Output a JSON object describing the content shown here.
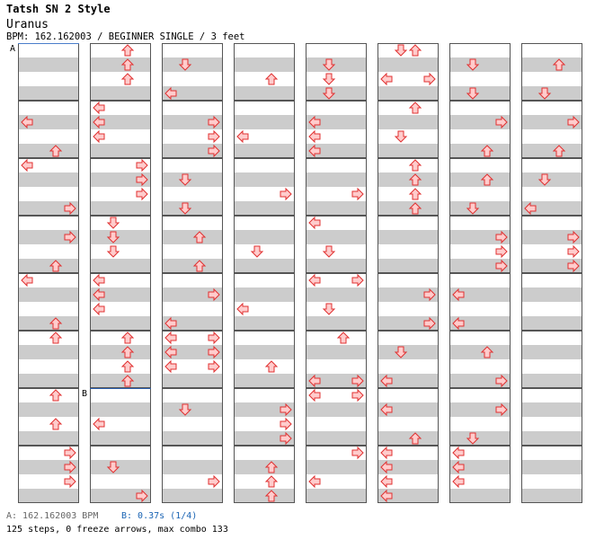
{
  "header": {
    "title": "Tatsh SN 2 Style",
    "song": "Uranus",
    "info": "BPM: 162.162003 / BEGINNER SINGLE / 3 feet"
  },
  "markers": {
    "a": "A",
    "b": "B"
  },
  "footer": {
    "bpm_a": "A: 162.162003 BPM",
    "bpm_b": "B: 0.37s (1/4)",
    "stats": "125 steps, 0 freeze arrows, max combo 133"
  },
  "colors": {
    "stripe": "#cccccc",
    "border": "#555555",
    "arrow_fill": "#ffcccc",
    "arrow_stroke": "#e03030",
    "marker_a_line": "#4a7ecb",
    "marker_b_line": "#2b5fb0"
  },
  "chart_data": {
    "type": "step-chart",
    "columns": 8,
    "measures_per_column": 8,
    "rows_per_measure": 4,
    "lanes": [
      "left",
      "down",
      "up",
      "right"
    ],
    "notes": [
      [
        [
          0,
          0,
          []
        ],
        [
          0,
          1,
          []
        ],
        [
          0,
          2,
          []
        ],
        [
          0,
          3,
          []
        ],
        [
          1,
          0,
          []
        ],
        [
          1,
          1,
          [
            0
          ]
        ],
        [
          1,
          2,
          []
        ],
        [
          1,
          3,
          [
            2
          ]
        ],
        [
          2,
          0,
          [
            0
          ]
        ],
        [
          2,
          1,
          []
        ],
        [
          2,
          2,
          []
        ],
        [
          2,
          3,
          [
            3
          ]
        ],
        [
          3,
          0,
          []
        ],
        [
          3,
          1,
          [
            3
          ]
        ],
        [
          3,
          2,
          []
        ],
        [
          3,
          3,
          [
            2
          ]
        ],
        [
          4,
          0,
          [
            0
          ]
        ],
        [
          4,
          1,
          []
        ],
        [
          4,
          2,
          []
        ],
        [
          4,
          3,
          [
            2
          ]
        ],
        [
          5,
          0,
          [
            2
          ]
        ],
        [
          5,
          1,
          []
        ],
        [
          5,
          2,
          []
        ],
        [
          5,
          3,
          []
        ],
        [
          6,
          0,
          [
            2
          ]
        ],
        [
          6,
          1,
          []
        ],
        [
          6,
          2,
          [
            2
          ]
        ],
        [
          6,
          3,
          []
        ],
        [
          7,
          0,
          [
            3
          ]
        ],
        [
          7,
          1,
          [
            3
          ]
        ],
        [
          7,
          2,
          [
            3
          ]
        ],
        [
          7,
          3,
          []
        ]
      ],
      [
        [
          0,
          0,
          [
            2
          ]
        ],
        [
          0,
          1,
          [
            2
          ]
        ],
        [
          0,
          2,
          [
            2
          ]
        ],
        [
          0,
          3,
          []
        ],
        [
          1,
          0,
          [
            0
          ]
        ],
        [
          1,
          1,
          [
            0
          ]
        ],
        [
          1,
          2,
          [
            0
          ]
        ],
        [
          1,
          3,
          []
        ],
        [
          2,
          0,
          [
            3
          ]
        ],
        [
          2,
          1,
          [
            3
          ]
        ],
        [
          2,
          2,
          [
            3
          ]
        ],
        [
          2,
          3,
          []
        ],
        [
          3,
          0,
          [
            1
          ]
        ],
        [
          3,
          1,
          [
            1
          ]
        ],
        [
          3,
          2,
          [
            1
          ]
        ],
        [
          3,
          3,
          []
        ],
        [
          4,
          0,
          [
            0
          ]
        ],
        [
          4,
          1,
          [
            0
          ]
        ],
        [
          4,
          2,
          [
            0
          ]
        ],
        [
          4,
          3,
          []
        ],
        [
          5,
          0,
          [
            2
          ]
        ],
        [
          5,
          1,
          [
            2
          ]
        ],
        [
          5,
          2,
          [
            2
          ]
        ],
        [
          5,
          3,
          [
            2
          ]
        ],
        [
          6,
          0,
          []
        ],
        [
          6,
          1,
          []
        ],
        [
          6,
          2,
          [
            0
          ]
        ],
        [
          6,
          3,
          []
        ],
        [
          7,
          0,
          []
        ],
        [
          7,
          1,
          [
            1
          ]
        ],
        [
          7,
          2,
          []
        ],
        [
          7,
          3,
          [
            3
          ]
        ]
      ],
      [
        [
          0,
          0,
          []
        ],
        [
          0,
          1,
          [
            1
          ]
        ],
        [
          0,
          2,
          []
        ],
        [
          0,
          3,
          [
            0
          ]
        ],
        [
          1,
          0,
          []
        ],
        [
          1,
          1,
          [
            3
          ]
        ],
        [
          1,
          2,
          [
            3
          ]
        ],
        [
          1,
          3,
          [
            3
          ]
        ],
        [
          2,
          0,
          []
        ],
        [
          2,
          1,
          [
            1
          ]
        ],
        [
          2,
          2,
          []
        ],
        [
          2,
          3,
          [
            1
          ]
        ],
        [
          3,
          0,
          []
        ],
        [
          3,
          1,
          [
            2
          ]
        ],
        [
          3,
          2,
          []
        ],
        [
          3,
          3,
          [
            2
          ]
        ],
        [
          4,
          0,
          []
        ],
        [
          4,
          1,
          [
            3
          ]
        ],
        [
          4,
          2,
          []
        ],
        [
          4,
          3,
          [
            0
          ]
        ],
        [
          5,
          0,
          [
            0,
            3
          ]
        ],
        [
          5,
          1,
          [
            0,
            3
          ]
        ],
        [
          5,
          2,
          [
            0,
            3
          ]
        ],
        [
          5,
          3,
          []
        ],
        [
          6,
          0,
          []
        ],
        [
          6,
          1,
          [
            1
          ]
        ],
        [
          6,
          2,
          []
        ],
        [
          6,
          3,
          []
        ],
        [
          7,
          0,
          []
        ],
        [
          7,
          1,
          []
        ],
        [
          7,
          2,
          [
            3
          ]
        ],
        [
          7,
          3,
          []
        ]
      ],
      [
        [
          0,
          0,
          []
        ],
        [
          0,
          1,
          []
        ],
        [
          0,
          2,
          [
            2
          ]
        ],
        [
          0,
          3,
          []
        ],
        [
          1,
          0,
          []
        ],
        [
          1,
          1,
          []
        ],
        [
          1,
          2,
          [
            0
          ]
        ],
        [
          1,
          3,
          []
        ],
        [
          2,
          0,
          []
        ],
        [
          2,
          1,
          []
        ],
        [
          2,
          2,
          [
            3
          ]
        ],
        [
          2,
          3,
          []
        ],
        [
          3,
          0,
          []
        ],
        [
          3,
          1,
          []
        ],
        [
          3,
          2,
          [
            1
          ]
        ],
        [
          3,
          3,
          []
        ],
        [
          4,
          0,
          []
        ],
        [
          4,
          1,
          []
        ],
        [
          4,
          2,
          [
            0
          ]
        ],
        [
          4,
          3,
          []
        ],
        [
          5,
          0,
          []
        ],
        [
          5,
          1,
          []
        ],
        [
          5,
          2,
          [
            2
          ]
        ],
        [
          5,
          3,
          []
        ],
        [
          6,
          0,
          []
        ],
        [
          6,
          1,
          [
            3
          ]
        ],
        [
          6,
          2,
          [
            3
          ]
        ],
        [
          6,
          3,
          [
            3
          ]
        ],
        [
          7,
          0,
          []
        ],
        [
          7,
          1,
          [
            2
          ]
        ],
        [
          7,
          2,
          [
            2
          ]
        ],
        [
          7,
          3,
          [
            2
          ]
        ]
      ],
      [
        [
          0,
          0,
          []
        ],
        [
          0,
          1,
          [
            1
          ]
        ],
        [
          0,
          2,
          [
            1
          ]
        ],
        [
          0,
          3,
          [
            1
          ]
        ],
        [
          1,
          0,
          []
        ],
        [
          1,
          1,
          [
            0
          ]
        ],
        [
          1,
          2,
          [
            0
          ]
        ],
        [
          1,
          3,
          [
            0
          ]
        ],
        [
          2,
          0,
          []
        ],
        [
          2,
          1,
          []
        ],
        [
          2,
          2,
          [
            3
          ]
        ],
        [
          2,
          3,
          []
        ],
        [
          3,
          0,
          [
            0
          ]
        ],
        [
          3,
          1,
          []
        ],
        [
          3,
          2,
          [
            1
          ]
        ],
        [
          3,
          3,
          []
        ],
        [
          4,
          0,
          [
            0,
            3
          ]
        ],
        [
          4,
          1,
          []
        ],
        [
          4,
          2,
          [
            1
          ]
        ],
        [
          4,
          3,
          []
        ],
        [
          5,
          0,
          [
            2
          ]
        ],
        [
          5,
          1,
          []
        ],
        [
          5,
          2,
          []
        ],
        [
          5,
          3,
          [
            0,
            3
          ]
        ],
        [
          6,
          0,
          [
            0,
            3
          ]
        ],
        [
          6,
          1,
          []
        ],
        [
          6,
          2,
          []
        ],
        [
          6,
          3,
          []
        ],
        [
          7,
          0,
          [
            3
          ]
        ],
        [
          7,
          1,
          []
        ],
        [
          7,
          2,
          [
            0
          ]
        ],
        [
          7,
          3,
          []
        ]
      ],
      [
        [
          0,
          0,
          [
            1,
            2
          ]
        ],
        [
          0,
          1,
          []
        ],
        [
          0,
          2,
          [
            0,
            3
          ]
        ],
        [
          0,
          3,
          []
        ],
        [
          1,
          0,
          [
            2
          ]
        ],
        [
          1,
          1,
          []
        ],
        [
          1,
          2,
          [
            1
          ]
        ],
        [
          1,
          3,
          []
        ],
        [
          2,
          0,
          [
            2
          ]
        ],
        [
          2,
          1,
          [
            2
          ]
        ],
        [
          2,
          2,
          [
            2
          ]
        ],
        [
          2,
          3,
          [
            2
          ]
        ],
        [
          3,
          0,
          []
        ],
        [
          3,
          1,
          []
        ],
        [
          3,
          2,
          []
        ],
        [
          3,
          3,
          []
        ],
        [
          4,
          0,
          []
        ],
        [
          4,
          1,
          [
            3
          ]
        ],
        [
          4,
          2,
          []
        ],
        [
          4,
          3,
          [
            3
          ]
        ],
        [
          5,
          0,
          []
        ],
        [
          5,
          1,
          [
            1
          ]
        ],
        [
          5,
          2,
          []
        ],
        [
          5,
          3,
          [
            0
          ]
        ],
        [
          6,
          0,
          []
        ],
        [
          6,
          1,
          [
            0
          ]
        ],
        [
          6,
          2,
          []
        ],
        [
          6,
          3,
          [
            2
          ]
        ],
        [
          7,
          0,
          [
            0
          ]
        ],
        [
          7,
          1,
          [
            0
          ]
        ],
        [
          7,
          2,
          [
            0
          ]
        ],
        [
          7,
          3,
          [
            0
          ]
        ]
      ],
      [
        [
          0,
          0,
          []
        ],
        [
          0,
          1,
          [
            1
          ]
        ],
        [
          0,
          2,
          []
        ],
        [
          0,
          3,
          [
            1
          ]
        ],
        [
          1,
          0,
          []
        ],
        [
          1,
          1,
          [
            3
          ]
        ],
        [
          1,
          2,
          []
        ],
        [
          1,
          3,
          [
            2
          ]
        ],
        [
          2,
          0,
          []
        ],
        [
          2,
          1,
          [
            2
          ]
        ],
        [
          2,
          2,
          []
        ],
        [
          2,
          3,
          [
            1
          ]
        ],
        [
          3,
          0,
          []
        ],
        [
          3,
          1,
          [
            3
          ]
        ],
        [
          3,
          2,
          [
            3
          ]
        ],
        [
          3,
          3,
          [
            3
          ]
        ],
        [
          4,
          0,
          []
        ],
        [
          4,
          1,
          [
            0
          ]
        ],
        [
          4,
          2,
          []
        ],
        [
          4,
          3,
          [
            0
          ]
        ],
        [
          5,
          0,
          []
        ],
        [
          5,
          1,
          [
            2
          ]
        ],
        [
          5,
          2,
          []
        ],
        [
          5,
          3,
          [
            3
          ]
        ],
        [
          6,
          0,
          []
        ],
        [
          6,
          1,
          [
            3
          ]
        ],
        [
          6,
          2,
          []
        ],
        [
          6,
          3,
          [
            1
          ]
        ],
        [
          7,
          0,
          [
            0
          ]
        ],
        [
          7,
          1,
          [
            0
          ]
        ],
        [
          7,
          2,
          [
            0
          ]
        ],
        [
          7,
          3,
          []
        ]
      ],
      [
        [
          0,
          0,
          []
        ],
        [
          0,
          1,
          [
            2
          ]
        ],
        [
          0,
          2,
          []
        ],
        [
          0,
          3,
          [
            1
          ]
        ],
        [
          1,
          0,
          []
        ],
        [
          1,
          1,
          [
            3
          ]
        ],
        [
          1,
          2,
          []
        ],
        [
          1,
          3,
          [
            2
          ]
        ],
        [
          2,
          0,
          []
        ],
        [
          2,
          1,
          [
            1
          ]
        ],
        [
          2,
          2,
          []
        ],
        [
          2,
          3,
          [
            0
          ]
        ],
        [
          3,
          0,
          []
        ],
        [
          3,
          1,
          [
            3
          ]
        ],
        [
          3,
          2,
          [
            3
          ]
        ],
        [
          3,
          3,
          [
            3
          ]
        ],
        [
          4,
          0,
          []
        ],
        [
          4,
          1,
          []
        ],
        [
          4,
          2,
          []
        ],
        [
          4,
          3,
          []
        ],
        [
          5,
          0,
          []
        ],
        [
          5,
          1,
          []
        ],
        [
          5,
          2,
          []
        ],
        [
          5,
          3,
          []
        ],
        [
          6,
          0,
          []
        ],
        [
          6,
          1,
          []
        ],
        [
          6,
          2,
          []
        ],
        [
          6,
          3,
          []
        ],
        [
          7,
          0,
          []
        ],
        [
          7,
          1,
          []
        ],
        [
          7,
          2,
          []
        ],
        [
          7,
          3,
          []
        ]
      ]
    ]
  }
}
